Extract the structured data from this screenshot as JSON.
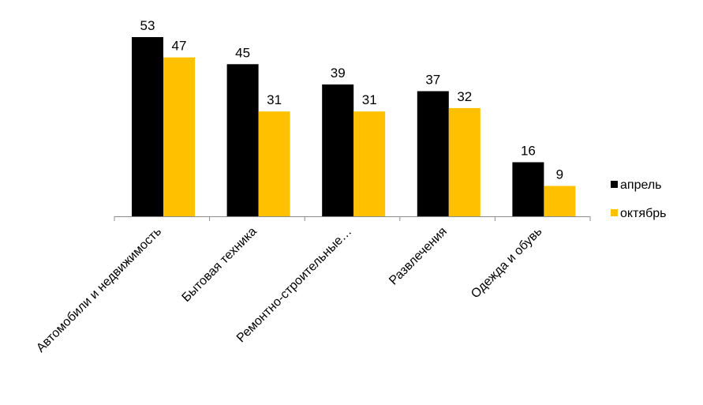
{
  "chart_data": {
    "type": "bar",
    "title": "",
    "xlabel": "",
    "ylabel": "",
    "ylim": [
      0,
      56
    ],
    "grid": false,
    "legend_position": "right",
    "categories": [
      "Автомобили и недвижимость",
      "Бытовая техника",
      "Ремонтно-строительные…",
      "Развлечения",
      "Одежда и обувь"
    ],
    "series": [
      {
        "name": "апрель",
        "color": "#000000",
        "values": [
          53,
          45,
          39,
          37,
          16
        ]
      },
      {
        "name": "октябрь",
        "color": "#FFC000",
        "values": [
          47,
          31,
          31,
          32,
          9
        ]
      }
    ]
  }
}
